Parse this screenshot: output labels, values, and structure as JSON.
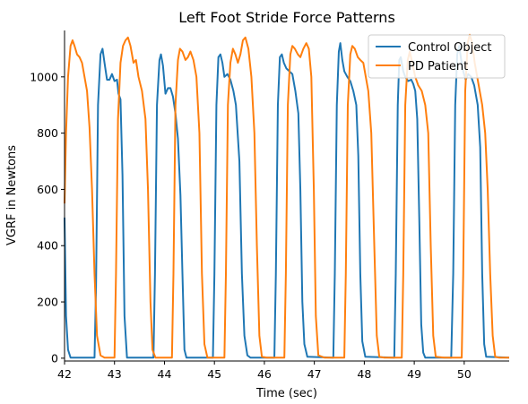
{
  "chart_data": {
    "type": "line",
    "title": "Left Foot Stride Force Patterns",
    "xlabel": "Time (sec)",
    "ylabel": "VGRF in Newtons",
    "xlim": [
      42,
      50.9
    ],
    "ylim": [
      -10,
      1165
    ],
    "xticks": [
      42,
      43,
      44,
      45,
      46,
      47,
      48,
      49,
      50
    ],
    "yticks": [
      0,
      200,
      400,
      600,
      800,
      1000
    ],
    "grid": false,
    "legend": "top-right",
    "series": [
      {
        "name": "Control Object",
        "color": "#1f77b4",
        "points": [
          [
            42.0,
            500
          ],
          [
            42.03,
            150
          ],
          [
            42.07,
            30
          ],
          [
            42.12,
            2
          ],
          [
            42.6,
            2
          ],
          [
            42.63,
            250
          ],
          [
            42.67,
            900
          ],
          [
            42.72,
            1080
          ],
          [
            42.76,
            1100
          ],
          [
            42.8,
            1050
          ],
          [
            42.85,
            990
          ],
          [
            42.9,
            990
          ],
          [
            42.95,
            1010
          ],
          [
            43.0,
            985
          ],
          [
            43.05,
            990
          ],
          [
            43.08,
            940
          ],
          [
            43.12,
            920
          ],
          [
            43.16,
            650
          ],
          [
            43.2,
            150
          ],
          [
            43.25,
            2
          ],
          [
            43.78,
            2
          ],
          [
            43.81,
            300
          ],
          [
            43.85,
            900
          ],
          [
            43.9,
            1060
          ],
          [
            43.93,
            1080
          ],
          [
            43.97,
            1040
          ],
          [
            44.02,
            940
          ],
          [
            44.07,
            960
          ],
          [
            44.12,
            960
          ],
          [
            44.17,
            930
          ],
          [
            44.22,
            870
          ],
          [
            44.27,
            780
          ],
          [
            44.32,
            580
          ],
          [
            44.36,
            300
          ],
          [
            44.4,
            30
          ],
          [
            44.44,
            2
          ],
          [
            44.97,
            2
          ],
          [
            45.0,
            300
          ],
          [
            45.04,
            900
          ],
          [
            45.08,
            1070
          ],
          [
            45.12,
            1080
          ],
          [
            45.16,
            1050
          ],
          [
            45.2,
            1000
          ],
          [
            45.26,
            1010
          ],
          [
            45.32,
            990
          ],
          [
            45.38,
            950
          ],
          [
            45.43,
            900
          ],
          [
            45.5,
            700
          ],
          [
            45.55,
            300
          ],
          [
            45.6,
            80
          ],
          [
            45.66,
            10
          ],
          [
            45.72,
            2
          ],
          [
            46.2,
            2
          ],
          [
            46.23,
            300
          ],
          [
            46.27,
            900
          ],
          [
            46.31,
            1070
          ],
          [
            46.35,
            1080
          ],
          [
            46.39,
            1050
          ],
          [
            46.44,
            1030
          ],
          [
            46.5,
            1020
          ],
          [
            46.56,
            1010
          ],
          [
            46.62,
            950
          ],
          [
            46.68,
            870
          ],
          [
            46.72,
            600
          ],
          [
            46.76,
            200
          ],
          [
            46.8,
            50
          ],
          [
            46.86,
            5
          ],
          [
            47.38,
            2
          ],
          [
            47.41,
            300
          ],
          [
            47.45,
            900
          ],
          [
            47.49,
            1090
          ],
          [
            47.52,
            1120
          ],
          [
            47.56,
            1060
          ],
          [
            47.6,
            1020
          ],
          [
            47.66,
            1000
          ],
          [
            47.72,
            985
          ],
          [
            47.78,
            950
          ],
          [
            47.84,
            900
          ],
          [
            47.88,
            720
          ],
          [
            47.92,
            300
          ],
          [
            47.96,
            60
          ],
          [
            48.02,
            5
          ],
          [
            48.6,
            2
          ],
          [
            48.63,
            300
          ],
          [
            48.67,
            900
          ],
          [
            48.7,
            1060
          ],
          [
            48.73,
            1070
          ],
          [
            48.78,
            1020
          ],
          [
            48.82,
            1000
          ],
          [
            48.88,
            985
          ],
          [
            48.94,
            990
          ],
          [
            48.98,
            975
          ],
          [
            49.02,
            950
          ],
          [
            49.06,
            850
          ],
          [
            49.1,
            500
          ],
          [
            49.14,
            120
          ],
          [
            49.18,
            20
          ],
          [
            49.22,
            2
          ],
          [
            49.74,
            2
          ],
          [
            49.78,
            300
          ],
          [
            49.82,
            900
          ],
          [
            49.86,
            1080
          ],
          [
            49.9,
            1110
          ],
          [
            49.94,
            1060
          ],
          [
            49.98,
            1020
          ],
          [
            50.03,
            990
          ],
          [
            50.08,
            1010
          ],
          [
            50.14,
            1000
          ],
          [
            50.2,
            970
          ],
          [
            50.27,
            900
          ],
          [
            50.32,
            750
          ],
          [
            50.36,
            300
          ],
          [
            50.4,
            50
          ],
          [
            50.44,
            5
          ],
          [
            50.9,
            2
          ]
        ]
      },
      {
        "name": "PD Patient",
        "color": "#ff7f0e",
        "points": [
          [
            42.0,
            550
          ],
          [
            42.03,
            800
          ],
          [
            42.07,
            1000
          ],
          [
            42.12,
            1110
          ],
          [
            42.16,
            1130
          ],
          [
            42.2,
            1110
          ],
          [
            42.25,
            1080
          ],
          [
            42.3,
            1070
          ],
          [
            42.35,
            1050
          ],
          [
            42.4,
            1000
          ],
          [
            42.45,
            950
          ],
          [
            42.5,
            820
          ],
          [
            42.55,
            600
          ],
          [
            42.6,
            300
          ],
          [
            42.65,
            80
          ],
          [
            42.72,
            10
          ],
          [
            42.8,
            2
          ],
          [
            43.0,
            2
          ],
          [
            43.03,
            300
          ],
          [
            43.07,
            850
          ],
          [
            43.12,
            1050
          ],
          [
            43.17,
            1110
          ],
          [
            43.22,
            1130
          ],
          [
            43.27,
            1140
          ],
          [
            43.32,
            1110
          ],
          [
            43.38,
            1050
          ],
          [
            43.43,
            1060
          ],
          [
            43.48,
            1000
          ],
          [
            43.55,
            950
          ],
          [
            43.62,
            850
          ],
          [
            43.67,
            600
          ],
          [
            43.72,
            200
          ],
          [
            43.76,
            30
          ],
          [
            43.82,
            2
          ],
          [
            44.15,
            2
          ],
          [
            44.18,
            300
          ],
          [
            44.22,
            900
          ],
          [
            44.27,
            1060
          ],
          [
            44.31,
            1100
          ],
          [
            44.36,
            1090
          ],
          [
            44.42,
            1060
          ],
          [
            44.47,
            1070
          ],
          [
            44.52,
            1090
          ],
          [
            44.58,
            1060
          ],
          [
            44.64,
            1000
          ],
          [
            44.7,
            800
          ],
          [
            44.75,
            300
          ],
          [
            44.8,
            50
          ],
          [
            44.86,
            2
          ],
          [
            45.2,
            2
          ],
          [
            45.23,
            300
          ],
          [
            45.27,
            900
          ],
          [
            45.32,
            1050
          ],
          [
            45.37,
            1100
          ],
          [
            45.42,
            1080
          ],
          [
            45.47,
            1050
          ],
          [
            45.52,
            1080
          ],
          [
            45.57,
            1130
          ],
          [
            45.62,
            1140
          ],
          [
            45.68,
            1100
          ],
          [
            45.74,
            1000
          ],
          [
            45.8,
            800
          ],
          [
            45.85,
            400
          ],
          [
            45.9,
            80
          ],
          [
            45.95,
            5
          ],
          [
            46.05,
            2
          ],
          [
            46.4,
            2
          ],
          [
            46.43,
            300
          ],
          [
            46.47,
            900
          ],
          [
            46.52,
            1080
          ],
          [
            46.56,
            1110
          ],
          [
            46.61,
            1100
          ],
          [
            46.67,
            1080
          ],
          [
            46.72,
            1070
          ],
          [
            46.78,
            1100
          ],
          [
            46.84,
            1120
          ],
          [
            46.89,
            1100
          ],
          [
            46.94,
            1000
          ],
          [
            46.99,
            600
          ],
          [
            47.03,
            150
          ],
          [
            47.08,
            10
          ],
          [
            47.2,
            2
          ],
          [
            47.6,
            2
          ],
          [
            47.63,
            300
          ],
          [
            47.67,
            900
          ],
          [
            47.72,
            1080
          ],
          [
            47.76,
            1110
          ],
          [
            47.81,
            1100
          ],
          [
            47.87,
            1070
          ],
          [
            47.92,
            1060
          ],
          [
            47.98,
            1050
          ],
          [
            48.03,
            1000
          ],
          [
            48.08,
            950
          ],
          [
            48.14,
            800
          ],
          [
            48.2,
            400
          ],
          [
            48.25,
            80
          ],
          [
            48.3,
            5
          ],
          [
            48.4,
            2
          ],
          [
            48.75,
            2
          ],
          [
            48.78,
            300
          ],
          [
            48.82,
            900
          ],
          [
            48.87,
            1060
          ],
          [
            48.91,
            1090
          ],
          [
            48.96,
            1050
          ],
          [
            49.02,
            1000
          ],
          [
            49.08,
            970
          ],
          [
            49.15,
            950
          ],
          [
            49.22,
            900
          ],
          [
            49.28,
            800
          ],
          [
            49.33,
            400
          ],
          [
            49.38,
            80
          ],
          [
            49.43,
            5
          ],
          [
            49.6,
            2
          ],
          [
            49.95,
            2
          ],
          [
            49.98,
            300
          ],
          [
            50.02,
            950
          ],
          [
            50.07,
            1120
          ],
          [
            50.11,
            1150
          ],
          [
            50.16,
            1120
          ],
          [
            50.21,
            1050
          ],
          [
            50.26,
            1000
          ],
          [
            50.31,
            950
          ],
          [
            50.36,
            900
          ],
          [
            50.42,
            800
          ],
          [
            50.47,
            600
          ],
          [
            50.52,
            300
          ],
          [
            50.57,
            80
          ],
          [
            50.62,
            5
          ],
          [
            50.7,
            2
          ],
          [
            50.9,
            2
          ]
        ]
      }
    ]
  }
}
